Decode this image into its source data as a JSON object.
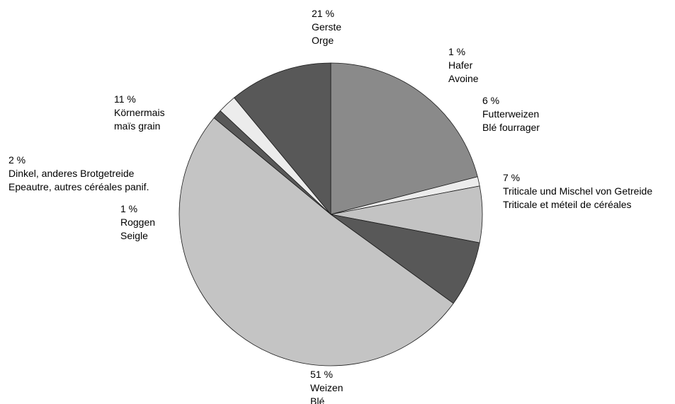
{
  "chart_data": {
    "type": "pie",
    "title": "",
    "start": "clockwise from 12 o'clock",
    "slices": [
      {
        "percent": "21 %",
        "value": 21,
        "label_de": "Gerste",
        "label_fr": "Orge",
        "color": "#8a8a8a"
      },
      {
        "percent": "1 %",
        "value": 1,
        "label_de": "Hafer",
        "label_fr": "Avoine",
        "color": "#ececec"
      },
      {
        "percent": "6 %",
        "value": 6,
        "label_de": "Futterweizen",
        "label_fr": "Blé fourrager",
        "color": "#c3c3c3"
      },
      {
        "percent": "7 %",
        "value": 7,
        "label_de": "Triticale und Mischel von Getreide",
        "label_fr": "Triticale et méteil de céréales",
        "color": "#585858"
      },
      {
        "percent": "51 %",
        "value": 51,
        "label_de": "Weizen",
        "label_fr": "Blé",
        "color": "#c4c4c4"
      },
      {
        "percent": "1 %",
        "value": 1,
        "label_de": "Roggen",
        "label_fr": "Seigle",
        "color": "#585858"
      },
      {
        "percent": "2 %",
        "value": 2,
        "label_de": "Dinkel, anderes Brotgetreide",
        "label_fr": "Epeautre, autres céréales panif.",
        "color": "#ececec"
      },
      {
        "percent": "11 %",
        "value": 11,
        "label_de": "Körnermais",
        "label_fr": "maïs grain",
        "color": "#585858"
      }
    ]
  }
}
